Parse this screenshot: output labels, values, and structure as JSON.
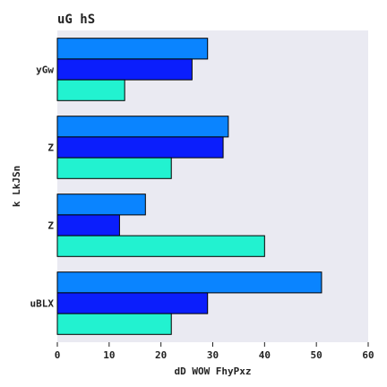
{
  "chart_data": {
    "type": "bar",
    "orientation": "horizontal",
    "title": "uG hS",
    "xlabel": "dD WOW FhyPxz",
    "ylabel": "k LkJSn",
    "categories": [
      "yGw",
      "Z",
      "Z",
      "uBLX"
    ],
    "series": [
      {
        "color": "#0a84ff",
        "values": [
          29,
          33,
          17,
          51
        ]
      },
      {
        "color": "#0b1efc",
        "values": [
          26,
          32,
          12,
          29
        ]
      },
      {
        "color": "#22f2d0",
        "values": [
          13,
          22,
          40,
          22
        ]
      }
    ],
    "xlim": [
      0,
      60
    ],
    "xticks": [
      0,
      10,
      20,
      30,
      40,
      50,
      60
    ],
    "grid": false,
    "legend": "none",
    "plot_background": "#eaeaf2"
  }
}
